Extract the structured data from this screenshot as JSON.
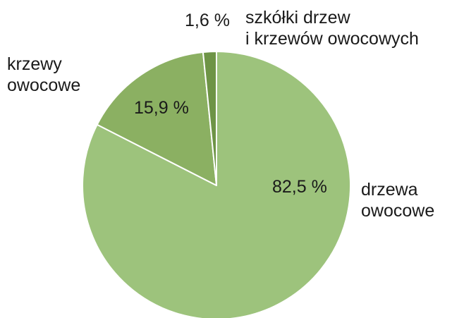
{
  "chart_data": {
    "type": "pie",
    "title": "",
    "start_angle_deg": 0,
    "direction": "clockwise",
    "slices": [
      {
        "label_lines": [
          "drzewa",
          "owocowe"
        ],
        "value": 82.5,
        "value_label": "82,5 %",
        "color": "#9dc37c"
      },
      {
        "label_lines": [
          "krzewy",
          "owocowe"
        ],
        "value": 15.9,
        "value_label": "15,9 %",
        "color": "#8bb062"
      },
      {
        "label_lines": [
          "szkółki drzew",
          "i krzewów owocowych"
        ],
        "value": 1.6,
        "value_label": "1,6 %",
        "color": "#6e9446"
      }
    ],
    "legend": "none",
    "slice_border_color": "#ffffff"
  }
}
